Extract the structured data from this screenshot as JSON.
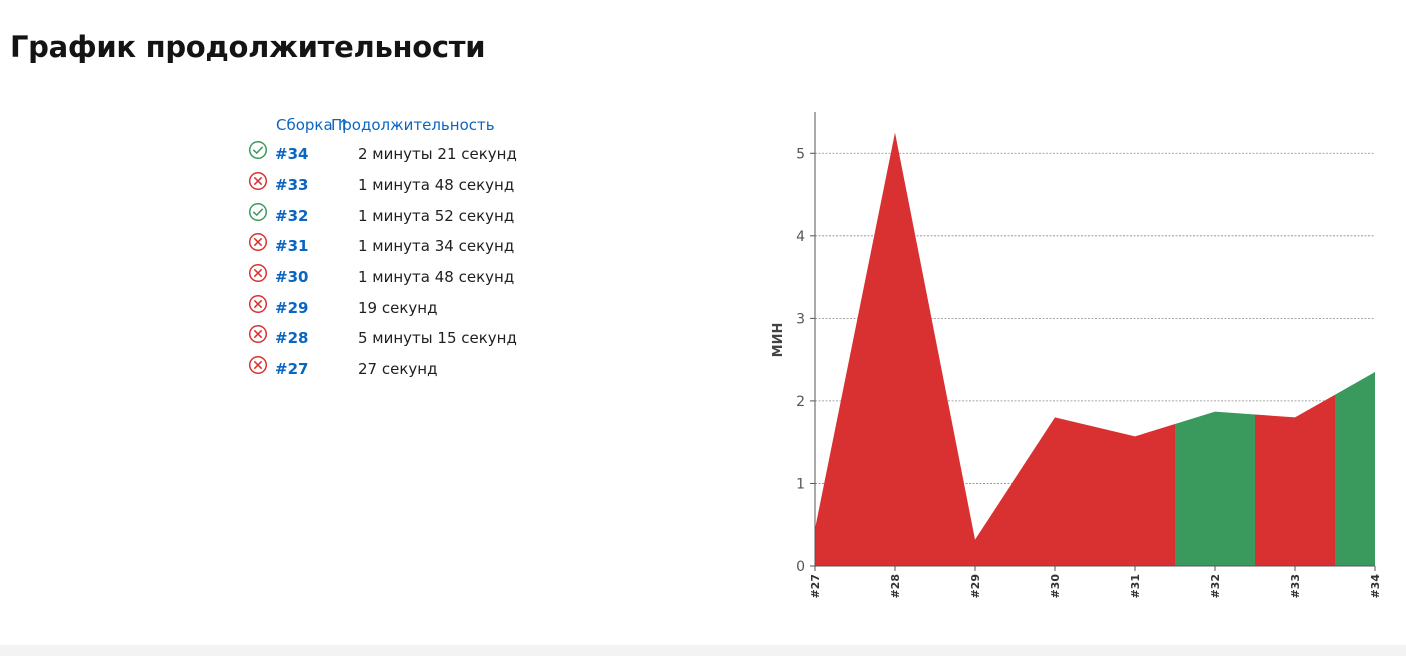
{
  "page": {
    "title": "График продолжительности"
  },
  "table": {
    "col_build": "Сборка ↑",
    "col_duration": "Продолжительность",
    "rows": [
      {
        "status": "success",
        "build": "#34",
        "duration": "2 минуты 21 секунд"
      },
      {
        "status": "failure",
        "build": "#33",
        "duration": "1 минута 48 секунд"
      },
      {
        "status": "success",
        "build": "#32",
        "duration": "1 минута 52 секунд"
      },
      {
        "status": "failure",
        "build": "#31",
        "duration": "1 минута 34 секунд"
      },
      {
        "status": "failure",
        "build": "#30",
        "duration": "1 минута 48 секунд"
      },
      {
        "status": "failure",
        "build": "#29",
        "duration": "19 секунд"
      },
      {
        "status": "failure",
        "build": "#28",
        "duration": "5 минуты 15 секунд"
      },
      {
        "status": "failure",
        "build": "#27",
        "duration": "27 секунд"
      }
    ]
  },
  "colors": {
    "success": "#3a9a5e",
    "failure": "#d93131",
    "link": "#0a66c2"
  },
  "icons": {
    "success": "check-circle-icon",
    "failure": "x-circle-icon"
  },
  "chart_data": {
    "type": "area",
    "title": "",
    "xlabel": "",
    "ylabel": "МИН",
    "categories": [
      "#27",
      "#28",
      "#29",
      "#30",
      "#31",
      "#32",
      "#33",
      "#34"
    ],
    "values": [
      0.45,
      5.25,
      0.32,
      1.8,
      1.57,
      1.87,
      1.8,
      2.35
    ],
    "status": [
      "failure",
      "failure",
      "failure",
      "failure",
      "failure",
      "success",
      "failure",
      "success"
    ],
    "yticks": [
      0,
      1,
      2,
      3,
      4,
      5
    ],
    "ylim": [
      0,
      5.5
    ],
    "grid": true
  }
}
